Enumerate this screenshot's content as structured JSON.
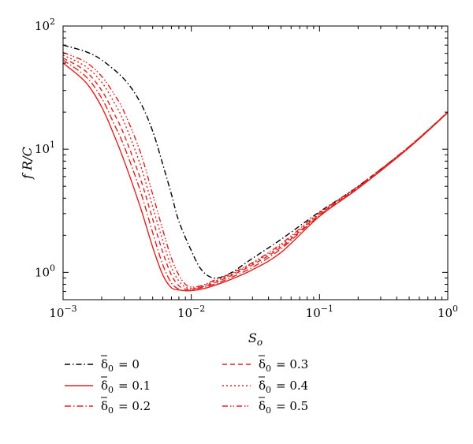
{
  "chart_data": {
    "type": "line",
    "xscale": "log",
    "yscale": "log",
    "xlim": [
      0.001,
      1
    ],
    "ylim": [
      0.6,
      100
    ],
    "xlabel": "S",
    "xlabel_sub": "o",
    "ylabel": "f R/C",
    "grid": false,
    "legend_position": "below",
    "x_ticks": [
      {
        "value": 0.001,
        "base": "10",
        "exp": "−3"
      },
      {
        "value": 0.01,
        "base": "10",
        "exp": "−2"
      },
      {
        "value": 0.1,
        "base": "10",
        "exp": "−1"
      },
      {
        "value": 1,
        "base": "10",
        "exp": "0"
      }
    ],
    "y_ticks": [
      {
        "value": 1,
        "base": "10",
        "exp": "0"
      },
      {
        "value": 10,
        "base": "10",
        "exp": "1"
      },
      {
        "value": 100,
        "base": "10",
        "exp": "2"
      }
    ],
    "series": [
      {
        "name": "δ̄0 = 0",
        "label_symbol": "δ",
        "label_sub": "0",
        "label_value": "= 0",
        "color": "#000000",
        "dash": "7,3,1.5,3",
        "x": [
          0.001,
          0.0015,
          0.002,
          0.003,
          0.004,
          0.005,
          0.006,
          0.007,
          0.008,
          0.01,
          0.012,
          0.015,
          0.02,
          0.03,
          0.05,
          0.1,
          0.2,
          0.5,
          1
        ],
        "y": [
          70,
          62,
          53,
          37,
          24,
          14,
          7.5,
          4.3,
          2.6,
          1.5,
          1.05,
          0.9,
          0.98,
          1.3,
          1.85,
          3.1,
          5.0,
          10.5,
          20
        ]
      },
      {
        "name": "δ̄0 = 0.1",
        "label_symbol": "δ",
        "label_sub": "0",
        "label_value": "= 0.1",
        "color": "#e02020",
        "dash": "",
        "x": [
          0.001,
          0.0015,
          0.002,
          0.0025,
          0.003,
          0.004,
          0.005,
          0.006,
          0.007,
          0.008,
          0.009,
          0.01,
          0.012,
          0.015,
          0.02,
          0.03,
          0.05,
          0.1,
          0.2,
          0.5,
          1
        ],
        "y": [
          50,
          35,
          22,
          13,
          8.0,
          3.4,
          1.6,
          0.95,
          0.75,
          0.72,
          0.71,
          0.71,
          0.73,
          0.78,
          0.87,
          1.05,
          1.45,
          2.85,
          4.8,
          10.3,
          19.8
        ]
      },
      {
        "name": "δ̄0 = 0.2",
        "label_symbol": "δ",
        "label_sub": "0",
        "label_value": "= 0.2",
        "color": "#e02020",
        "dash": "8,3,1.5,3",
        "x": [
          0.001,
          0.0015,
          0.002,
          0.0025,
          0.003,
          0.004,
          0.005,
          0.006,
          0.007,
          0.008,
          0.009,
          0.01,
          0.012,
          0.015,
          0.02,
          0.03,
          0.05,
          0.1,
          0.2,
          0.5,
          1
        ],
        "y": [
          53,
          39,
          26,
          16,
          10.5,
          4.6,
          2.1,
          1.15,
          0.82,
          0.73,
          0.71,
          0.72,
          0.75,
          0.8,
          0.9,
          1.1,
          1.55,
          2.9,
          4.85,
          10.4,
          19.9
        ]
      },
      {
        "name": "δ̄0 = 0.3",
        "label_symbol": "δ",
        "label_sub": "0",
        "label_value": "= 0.3",
        "color": "#e02020",
        "dash": "6,4",
        "x": [
          0.001,
          0.0015,
          0.002,
          0.0025,
          0.003,
          0.004,
          0.005,
          0.006,
          0.007,
          0.008,
          0.009,
          0.01,
          0.012,
          0.015,
          0.02,
          0.03,
          0.05,
          0.1,
          0.2,
          0.5,
          1
        ],
        "y": [
          55,
          43,
          30,
          19.5,
          13,
          5.8,
          2.7,
          1.45,
          0.95,
          0.78,
          0.73,
          0.73,
          0.76,
          0.82,
          0.93,
          1.15,
          1.6,
          2.95,
          4.9,
          10.4,
          19.9
        ]
      },
      {
        "name": "δ̄0 = 0.4",
        "label_symbol": "δ",
        "label_sub": "0",
        "label_value": "= 0.4",
        "color": "#e02020",
        "dash": "2,3",
        "x": [
          0.001,
          0.0015,
          0.002,
          0.0025,
          0.003,
          0.004,
          0.005,
          0.006,
          0.007,
          0.008,
          0.009,
          0.01,
          0.012,
          0.015,
          0.02,
          0.03,
          0.05,
          0.1,
          0.2,
          0.5,
          1
        ],
        "y": [
          58,
          47,
          35,
          24,
          16.5,
          7.5,
          3.4,
          1.8,
          1.1,
          0.85,
          0.76,
          0.74,
          0.77,
          0.84,
          0.95,
          1.18,
          1.65,
          3.0,
          4.95,
          10.5,
          20
        ]
      },
      {
        "name": "δ̄0 = 0.5",
        "label_symbol": "δ",
        "label_sub": "0",
        "label_value": "= 0.5",
        "color": "#e02020",
        "dash": "7,3,1.5,2,1.5,3",
        "x": [
          0.001,
          0.0015,
          0.002,
          0.0025,
          0.003,
          0.004,
          0.005,
          0.006,
          0.007,
          0.008,
          0.009,
          0.01,
          0.012,
          0.015,
          0.02,
          0.03,
          0.05,
          0.1,
          0.2,
          0.5,
          1
        ],
        "y": [
          61,
          51,
          39,
          28,
          20,
          9.5,
          4.3,
          2.2,
          1.3,
          0.95,
          0.8,
          0.76,
          0.78,
          0.86,
          0.97,
          1.2,
          1.7,
          3.05,
          5.0,
          10.5,
          20
        ]
      }
    ]
  }
}
